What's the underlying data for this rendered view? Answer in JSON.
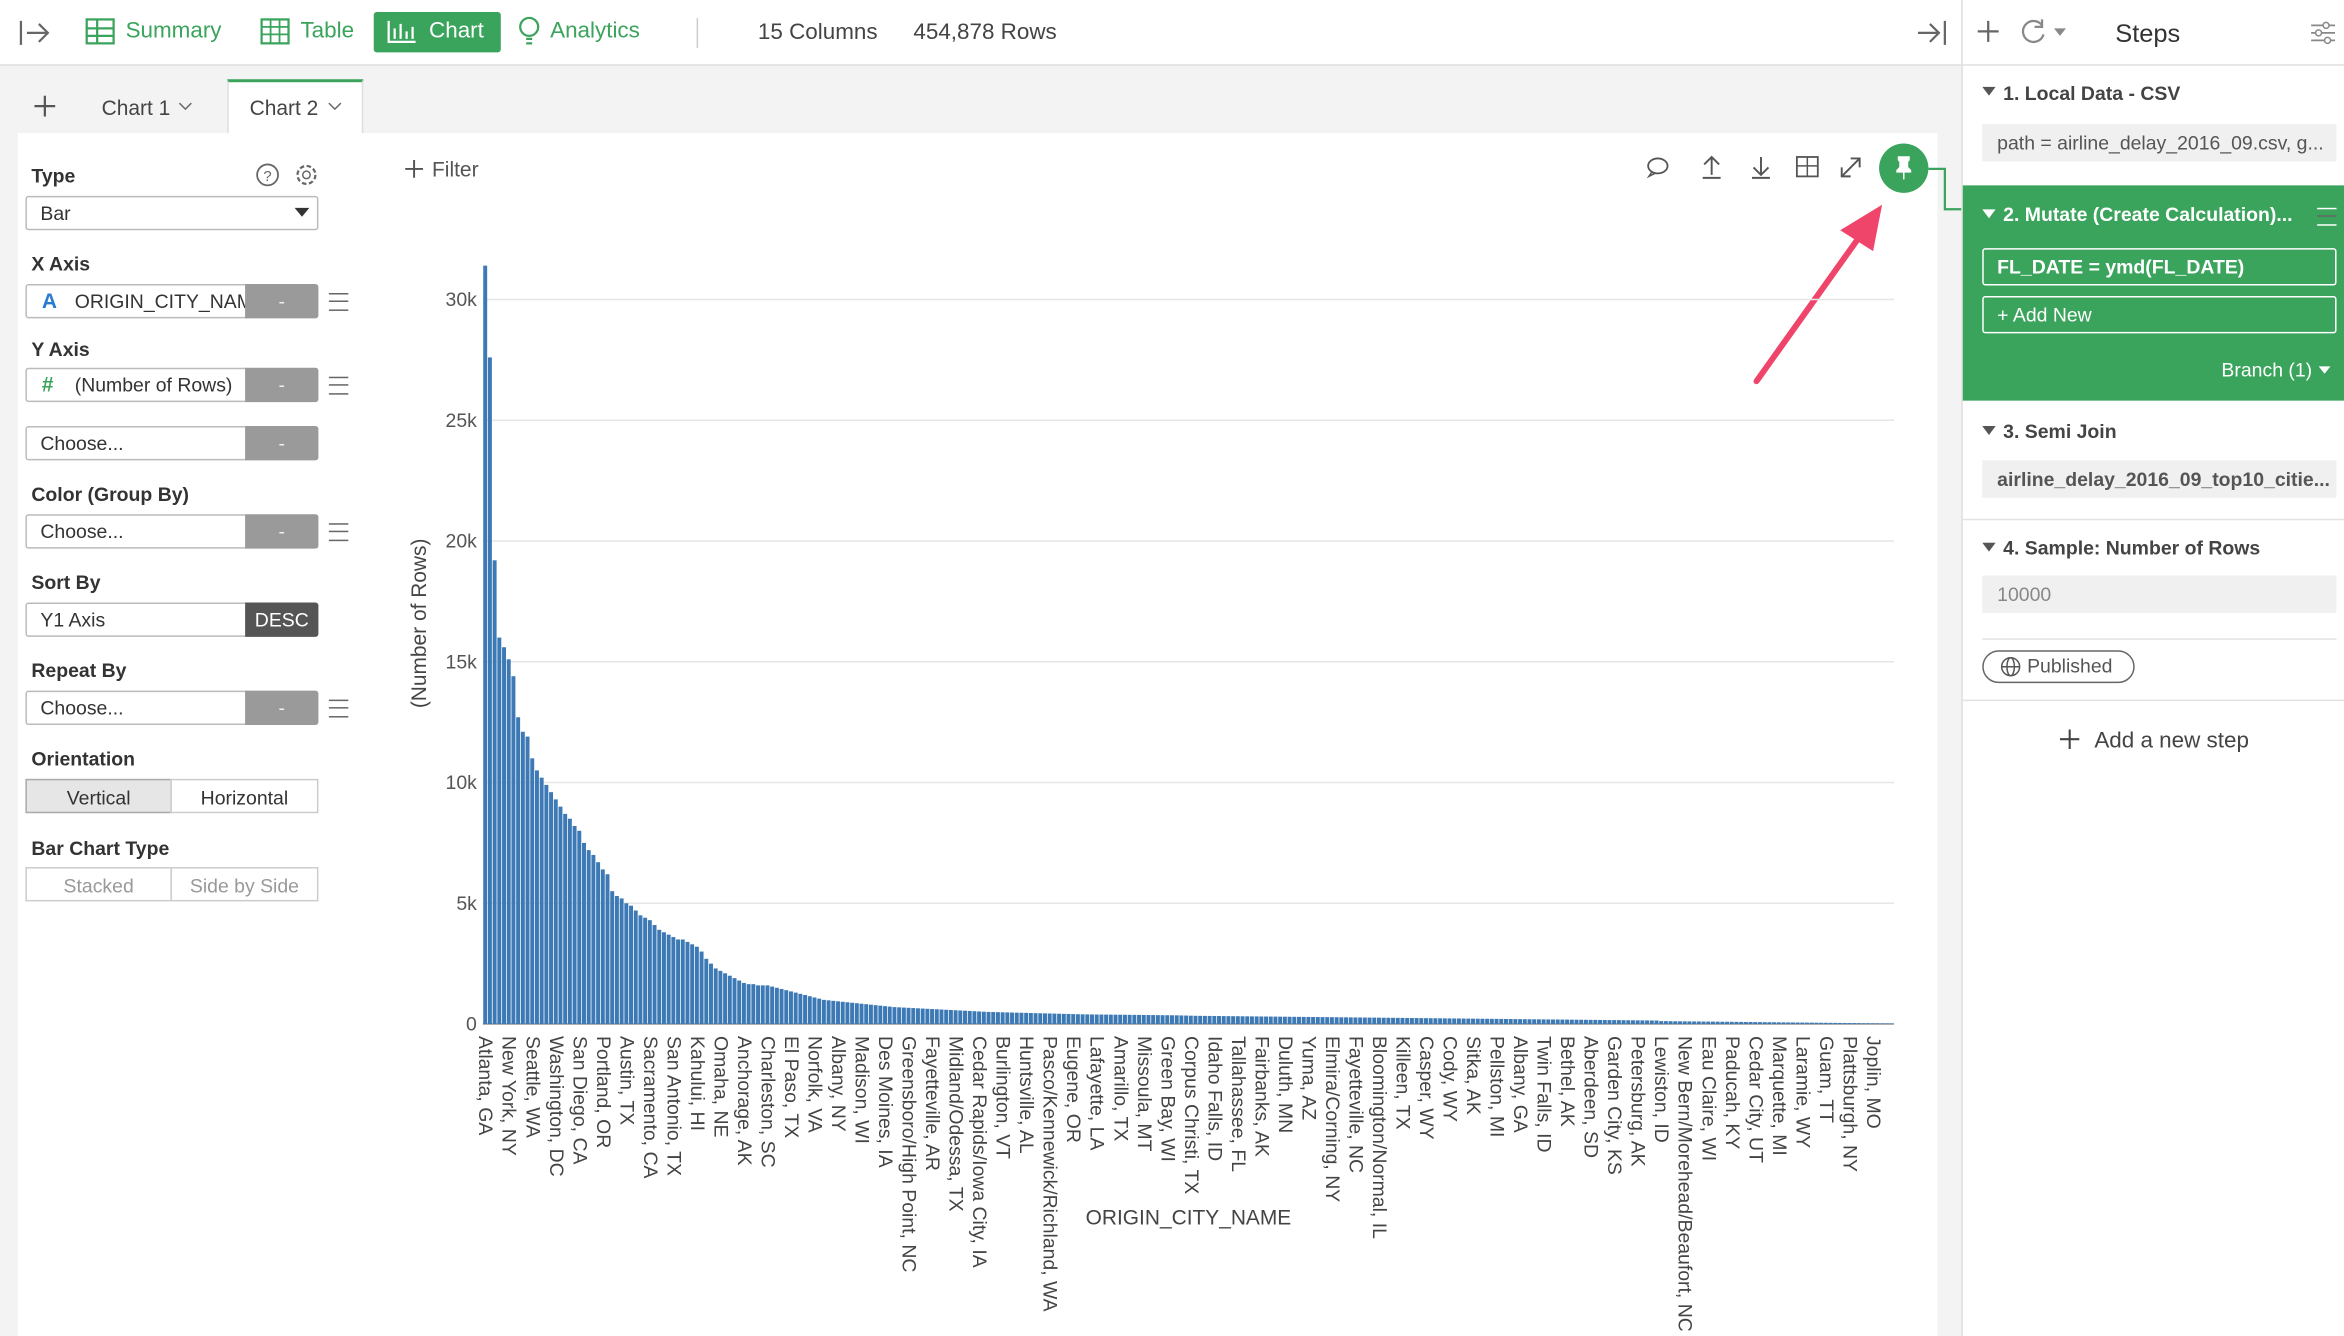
{
  "toolbar": {
    "tabs": [
      "Summary",
      "Table",
      "Chart",
      "Analytics"
    ],
    "columns": "15 Columns",
    "rows": "454,878 Rows",
    "steps_title": "Steps"
  },
  "chart_tabs": [
    "Chart 1",
    "Chart 2"
  ],
  "config": {
    "type_label": "Type",
    "type_value": "Bar",
    "x_axis_label": "X Axis",
    "x_axis_icon": "A",
    "x_axis_value": "ORIGIN_CITY_NAME",
    "y_axis_label": "Y Axis",
    "y_axis_icon": "#",
    "y_axis_value": "(Number of Rows)",
    "dash": "-",
    "choose": "Choose...",
    "color_label": "Color (Group By)",
    "sort_label": "Sort By",
    "sort_value": "Y1 Axis",
    "sort_order": "DESC",
    "repeat_label": "Repeat By",
    "orientation_label": "Orientation",
    "orientation_options": [
      "Vertical",
      "Horizontal"
    ],
    "bar_type_label": "Bar Chart Type",
    "bar_type_options": [
      "Stacked",
      "Side by Side"
    ]
  },
  "filter": "Filter",
  "steps": [
    {
      "title": "1. Local Data - CSV",
      "items": [
        "path = airline_delay_2016_09.csv, g..."
      ]
    },
    {
      "title": "2. Mutate (Create Calculation)...",
      "items": [
        "FL_DATE = ymd(FL_DATE)"
      ],
      "add": "+ Add New",
      "branch": "Branch (1)"
    },
    {
      "title": "3. Semi Join",
      "items": [
        "airline_delay_2016_09_top10_citie..."
      ]
    },
    {
      "title": "4. Sample: Number of Rows",
      "items": [
        "10000"
      ]
    }
  ],
  "published": "Published",
  "add_step": "Add a new step",
  "chart_data": {
    "type": "bar",
    "x_label": "ORIGIN_CITY_NAME",
    "y_label": "(Number of Rows)",
    "color": "#3d7ab5",
    "grid": true,
    "ylim": [
      0,
      32000
    ],
    "yticks": [
      0,
      {
        "value": 5000,
        "label": "5k"
      },
      {
        "value": 10000,
        "label": "10k"
      },
      {
        "value": 15000,
        "label": "15k"
      },
      {
        "value": 20000,
        "label": "20k"
      },
      {
        "value": 25000,
        "label": "25k"
      },
      {
        "value": 30000,
        "label": "30k"
      }
    ],
    "categories": [
      "Atlanta, GA",
      null,
      null,
      null,
      null,
      "New York, NY",
      null,
      null,
      null,
      null,
      "Seattle, WA",
      null,
      null,
      null,
      null,
      "Washington, DC",
      null,
      null,
      null,
      null,
      "San Diego, CA",
      null,
      null,
      null,
      null,
      "Portland, OR",
      null,
      null,
      null,
      null,
      "Austin, TX",
      null,
      null,
      null,
      null,
      "Sacramento, CA",
      null,
      null,
      null,
      null,
      "San Antonio, TX",
      null,
      null,
      null,
      null,
      "Kahului, HI",
      null,
      null,
      null,
      null,
      "Omaha, NE",
      null,
      null,
      null,
      null,
      "Anchorage, AK",
      null,
      null,
      null,
      null,
      "Charleston, SC",
      null,
      null,
      null,
      null,
      "El Paso, TX",
      null,
      null,
      null,
      null,
      "Norfolk, VA",
      null,
      null,
      null,
      null,
      "Albany, NY",
      null,
      null,
      null,
      null,
      "Madison, WI",
      null,
      null,
      null,
      null,
      "Des Moines, IA",
      null,
      null,
      null,
      null,
      "Greensboro/High Point, NC",
      null,
      null,
      null,
      null,
      "Fayetteville, AR",
      null,
      null,
      null,
      null,
      "Midland/Odessa, TX",
      null,
      null,
      null,
      null,
      "Cedar Rapids/Iowa City, IA",
      null,
      null,
      null,
      null,
      "Burlington, VT",
      null,
      null,
      null,
      null,
      "Huntsville, AL",
      null,
      null,
      null,
      null,
      "Pasco/Kennewick/Richland, WA",
      null,
      null,
      null,
      null,
      "Eugene, OR",
      null,
      null,
      null,
      null,
      "Lafayette, LA",
      null,
      null,
      null,
      null,
      "Amarillo, TX",
      null,
      null,
      null,
      null,
      "Missoula, MT",
      null,
      null,
      null,
      null,
      "Green Bay, WI",
      null,
      null,
      null,
      null,
      "Corpus Christi, TX",
      null,
      null,
      null,
      null,
      "Idaho Falls, ID",
      null,
      null,
      null,
      null,
      "Tallahassee, FL",
      null,
      null,
      null,
      null,
      "Fairbanks, AK",
      null,
      null,
      null,
      null,
      "Duluth, MN",
      null,
      null,
      null,
      null,
      "Yuma, AZ",
      null,
      null,
      null,
      null,
      "Elmira/Corning, NY",
      null,
      null,
      null,
      null,
      "Fayetteville, NC",
      null,
      null,
      null,
      null,
      "Bloomington/Normal, IL",
      null,
      null,
      null,
      null,
      "Killeen, TX",
      null,
      null,
      null,
      null,
      "Casper, WY",
      null,
      null,
      null,
      null,
      "Cody, WY",
      null,
      null,
      null,
      null,
      "Sitka, AK",
      null,
      null,
      null,
      null,
      "Pellston, MI",
      null,
      null,
      null,
      null,
      "Albany, GA",
      null,
      null,
      null,
      null,
      "Twin Falls, ID",
      null,
      null,
      null,
      null,
      "Bethel, AK",
      null,
      null,
      null,
      null,
      "Aberdeen, SD",
      null,
      null,
      null,
      null,
      "Garden City, KS",
      null,
      null,
      null,
      null,
      "Petersburg, AK",
      null,
      null,
      null,
      null,
      "Lewiston, ID",
      null,
      null,
      null,
      null,
      "New Bern/Morehead/Beaufort, NC",
      null,
      null,
      null,
      null,
      "Eau Claire, WI",
      null,
      null,
      null,
      null,
      "Paducah, KY",
      null,
      null,
      null,
      null,
      "Cedar City, UT",
      null,
      null,
      null,
      null,
      "Marquette, MI",
      null,
      null,
      null,
      null,
      "Laramie, WY",
      null,
      null,
      null,
      null,
      "Guam, TT",
      null,
      null,
      null,
      null,
      "Plattsburgh, NY",
      null,
      null,
      null,
      null,
      "Joplin, MO",
      null,
      null,
      null,
      null
    ],
    "values": [
      31400,
      27600,
      19200,
      16000,
      15600,
      15100,
      14400,
      12700,
      12100,
      11900,
      11000,
      10500,
      10200,
      9900,
      9600,
      9300,
      9000,
      8700,
      8500,
      8200,
      8000,
      7500,
      7200,
      7000,
      6700,
      6400,
      6200,
      5500,
      5300,
      5200,
      5000,
      4900,
      4700,
      4500,
      4400,
      4300,
      4100,
      3900,
      3800,
      3700,
      3600,
      3500,
      3500,
      3400,
      3300,
      3200,
      3000,
      2700,
      2500,
      2300,
      2200,
      2100,
      2000,
      1900,
      1800,
      1700,
      1650,
      1650,
      1600,
      1600,
      1600,
      1550,
      1500,
      1450,
      1400,
      1350,
      1300,
      1250,
      1200,
      1150,
      1100,
      1050,
      1000,
      980,
      960,
      940,
      920,
      900,
      880,
      860,
      840,
      820,
      800,
      780,
      760,
      740,
      720,
      700,
      690,
      680,
      670,
      660,
      650,
      640,
      630,
      620,
      610,
      600,
      590,
      580,
      570,
      560,
      550,
      540,
      530,
      520,
      510,
      500,
      495,
      490,
      485,
      480,
      475,
      470,
      465,
      460,
      455,
      450,
      445,
      440,
      435,
      430,
      425,
      420,
      415,
      410,
      405,
      400,
      398,
      396,
      394,
      392,
      390,
      388,
      386,
      384,
      382,
      380,
      378,
      376,
      374,
      372,
      370,
      368,
      366,
      364,
      362,
      360,
      355,
      350,
      345,
      340,
      338,
      336,
      334,
      332,
      330,
      328,
      326,
      324,
      322,
      320,
      318,
      316,
      314,
      312,
      310,
      308,
      306,
      304,
      302,
      300,
      298,
      296,
      294,
      292,
      290,
      288,
      286,
      284,
      282,
      280,
      278,
      276,
      274,
      272,
      270,
      268,
      266,
      264,
      262,
      260,
      258,
      256,
      254,
      252,
      250,
      248,
      246,
      244,
      242,
      240,
      238,
      236,
      234,
      232,
      230,
      228,
      226,
      224,
      222,
      220,
      218,
      216,
      214,
      212,
      210,
      208,
      206,
      204,
      202,
      200,
      198,
      196,
      194,
      192,
      190,
      188,
      186,
      184,
      182,
      180,
      178,
      176,
      174,
      172,
      170,
      168,
      166,
      164,
      162,
      160,
      158,
      156,
      154,
      152,
      150,
      148,
      146,
      144,
      120,
      118,
      116,
      114,
      112,
      110,
      108,
      106,
      104,
      102,
      100,
      98,
      96,
      94,
      92,
      90,
      88,
      86,
      84,
      82,
      80,
      78,
      76,
      74,
      72,
      70,
      68,
      66,
      64,
      62,
      60,
      58,
      56,
      54,
      52,
      50,
      48,
      46,
      44,
      42,
      40,
      38,
      36,
      34,
      32,
      30,
      28,
      26,
      24,
      22
    ]
  }
}
